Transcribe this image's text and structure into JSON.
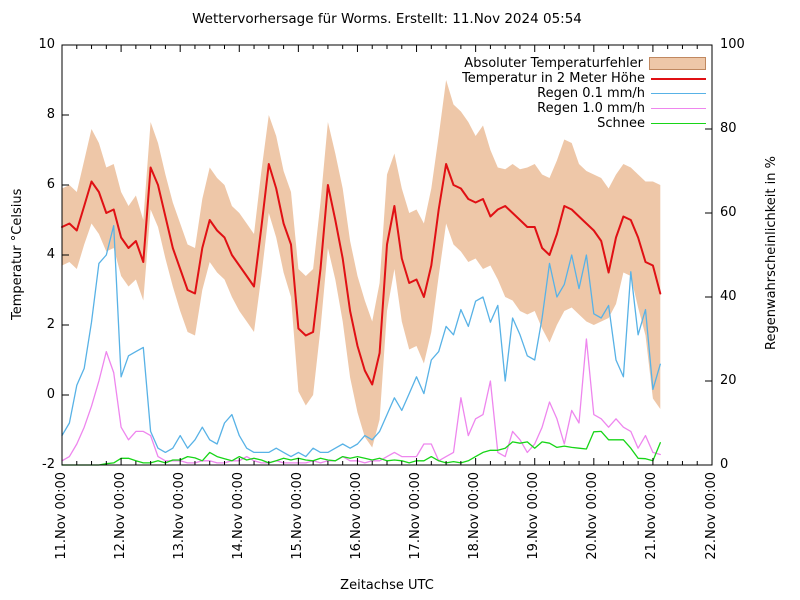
{
  "title": "Wettervorhersage für Worms. Erstellt: 11.Nov 2024 05:54",
  "axes": {
    "y_left": {
      "label": "Temperatur °Celsius",
      "min": -2,
      "max": 10,
      "ticks": [
        -2,
        0,
        2,
        4,
        6,
        8,
        10
      ]
    },
    "y_right": {
      "label": "Regenwahrscheinlichkeit in %",
      "min": 0,
      "max": 100,
      "ticks": [
        0,
        20,
        40,
        60,
        80,
        100
      ]
    },
    "x": {
      "label": "Zeitachse UTC",
      "tick_labels": [
        "11.Nov 00:00",
        "12.Nov 00:00",
        "13.Nov 00:00",
        "14.Nov 00:00",
        "15.Nov 00:00",
        "16.Nov 00:00",
        "17.Nov 00:00",
        "18.Nov 00:00",
        "19.Nov 00:00",
        "20.Nov 00:00",
        "21.Nov 00:00",
        "22.Nov 00:00"
      ],
      "minor_tick_hours": 6,
      "span_days": 11
    }
  },
  "legend": [
    {
      "label": "Absoluter Temperaturfehler",
      "type": "band",
      "color": "#eec7a8"
    },
    {
      "label": "Temperatur in 2 Meter Höhe",
      "type": "line",
      "color": "#e01014"
    },
    {
      "label": "Regen 0.1 mm/h",
      "type": "line",
      "color": "#58b2e6"
    },
    {
      "label": "Regen 1.0 mm/h",
      "type": "line",
      "color": "#ee86ee"
    },
    {
      "label": "Schnee",
      "type": "line",
      "color": "#17d517"
    }
  ],
  "chart_data": {
    "type": "line",
    "title": "Wettervorhersage für Worms. Erstellt: 11.Nov 2024 05:54",
    "xlabel": "Zeitachse UTC",
    "ylabel_left": "Temperatur °Celsius",
    "ylabel_right": "Regenwahrscheinlichkeit in %",
    "ylim_left": [
      -2,
      10
    ],
    "ylim_right": [
      0,
      100
    ],
    "x_start": "11.Nov 00:00",
    "x_end_axis": "22.Nov 00:00",
    "x_step_hours": 3,
    "grid": false,
    "legend_position": "top-right-inside",
    "series": [
      {
        "name": "Absoluter Temperaturfehler",
        "kind": "band",
        "axis": "left",
        "color": "#eec7a8",
        "upper": [
          5.9,
          6.0,
          5.8,
          6.7,
          7.6,
          7.2,
          6.5,
          6.6,
          5.8,
          5.4,
          5.7,
          5.0,
          7.8,
          7.2,
          6.3,
          5.5,
          4.9,
          4.3,
          4.2,
          5.6,
          6.5,
          6.2,
          6.0,
          5.4,
          5.2,
          4.9,
          4.6,
          6.4,
          8.0,
          7.4,
          6.4,
          5.8,
          3.6,
          3.4,
          3.6,
          5.5,
          7.8,
          6.9,
          5.9,
          4.4,
          3.4,
          2.7,
          2.1,
          3.2,
          6.3,
          6.9,
          5.9,
          5.2,
          5.3,
          4.9,
          5.9,
          7.4,
          9.0,
          8.3,
          8.1,
          7.8,
          7.4,
          7.7,
          7.0,
          6.5,
          6.45,
          6.6,
          6.45,
          6.5,
          6.6,
          6.3,
          6.2,
          6.7,
          7.3,
          7.2,
          6.6,
          6.4,
          6.3,
          6.2,
          5.9,
          6.3,
          6.6,
          6.5,
          6.3,
          6.1,
          6.1,
          6.0
        ],
        "lower": [
          3.7,
          3.8,
          3.6,
          4.3,
          4.9,
          4.6,
          4.1,
          4.2,
          3.4,
          3.1,
          3.3,
          2.7,
          5.3,
          4.8,
          3.9,
          3.1,
          2.4,
          1.8,
          1.7,
          3.0,
          3.8,
          3.5,
          3.3,
          2.8,
          2.4,
          2.1,
          1.8,
          3.4,
          5.2,
          4.5,
          3.5,
          2.8,
          0.1,
          -0.3,
          0.0,
          1.9,
          4.2,
          3.3,
          2.1,
          0.5,
          -0.5,
          -1.2,
          -1.5,
          -0.7,
          2.4,
          3.6,
          2.1,
          1.3,
          1.4,
          0.9,
          1.8,
          3.4,
          4.9,
          4.3,
          4.1,
          3.8,
          3.9,
          3.6,
          3.7,
          3.3,
          2.8,
          2.7,
          2.4,
          2.3,
          2.4,
          1.9,
          1.5,
          2.0,
          2.4,
          2.5,
          2.3,
          2.1,
          2.0,
          2.1,
          2.2,
          2.6,
          3.5,
          3.4,
          2.5,
          1.7,
          -0.1,
          -0.4
        ]
      },
      {
        "name": "Temperatur in 2 Meter Höhe",
        "kind": "line",
        "axis": "left",
        "color": "#e01014",
        "width": 2,
        "values": [
          4.8,
          4.9,
          4.7,
          5.4,
          6.1,
          5.8,
          5.2,
          5.3,
          4.5,
          4.2,
          4.4,
          3.8,
          6.5,
          6.0,
          5.1,
          4.2,
          3.6,
          3.0,
          2.9,
          4.2,
          5.0,
          4.7,
          4.5,
          4.0,
          3.7,
          3.4,
          3.1,
          4.8,
          6.6,
          5.9,
          4.9,
          4.3,
          1.9,
          1.7,
          1.8,
          3.6,
          6.0,
          5.0,
          3.9,
          2.4,
          1.4,
          0.7,
          0.3,
          1.2,
          4.3,
          5.4,
          3.9,
          3.2,
          3.3,
          2.8,
          3.7,
          5.3,
          6.6,
          6.0,
          5.9,
          5.6,
          5.5,
          5.6,
          5.1,
          5.3,
          5.4,
          5.2,
          5.0,
          4.8,
          4.8,
          4.2,
          4.0,
          4.6,
          5.4,
          5.3,
          5.1,
          4.9,
          4.7,
          4.4,
          3.5,
          4.5,
          5.1,
          5.0,
          4.5,
          3.8,
          3.7,
          2.9
        ]
      },
      {
        "name": "Regen 0.1 mm/h",
        "kind": "line",
        "axis": "right",
        "color": "#58b2e6",
        "width": 1.3,
        "values": [
          7,
          10,
          19,
          23,
          34,
          48,
          50,
          57,
          21,
          26,
          27,
          28,
          8,
          4,
          3,
          4,
          7,
          4,
          6,
          9,
          6,
          5,
          10,
          12,
          7,
          4,
          3,
          3,
          3,
          4,
          3,
          2,
          3,
          2,
          4,
          3,
          3,
          4,
          5,
          4,
          5,
          7,
          6,
          8,
          12,
          16,
          13,
          17,
          21,
          17,
          25,
          27,
          33,
          31,
          37,
          33,
          39,
          40,
          34,
          38,
          20,
          35,
          31,
          26,
          25,
          35,
          48,
          40,
          43,
          50,
          42,
          50,
          36,
          35,
          38,
          25,
          21,
          46,
          31,
          37,
          18,
          24
        ]
      },
      {
        "name": "Regen 1.0 mm/h",
        "kind": "line",
        "axis": "right",
        "color": "#ee86ee",
        "width": 1.3,
        "values": [
          1,
          2,
          5,
          9,
          14,
          20,
          27,
          22,
          9,
          6,
          8,
          8,
          7,
          2,
          1,
          1,
          1,
          0.5,
          0.5,
          1,
          1,
          0.5,
          0.5,
          1,
          1,
          2,
          1,
          0.5,
          0.5,
          1,
          0.5,
          0.5,
          0.5,
          0.5,
          1,
          0.5,
          1,
          1,
          2,
          1,
          1,
          0.5,
          1,
          1,
          2,
          3,
          2,
          2,
          2,
          5,
          5,
          1,
          2,
          3,
          16,
          7,
          11,
          12,
          20,
          3,
          2,
          8,
          6,
          3,
          5,
          9,
          15,
          11,
          5,
          13,
          10,
          30,
          12,
          11,
          9,
          11,
          9,
          8,
          4,
          7,
          3,
          2.5
        ]
      },
      {
        "name": "Schnee",
        "kind": "line",
        "axis": "right",
        "color": "#17d517",
        "width": 1.3,
        "values": [
          0,
          0,
          0,
          0,
          0,
          0,
          0.3,
          0.5,
          1.6,
          1.6,
          1,
          0.5,
          0.5,
          1,
          0.5,
          1.2,
          1.2,
          2,
          1.7,
          1,
          3,
          2,
          1.5,
          1,
          2,
          1.2,
          1.6,
          1.2,
          0.5,
          1,
          1.6,
          1.2,
          1.6,
          1.2,
          1,
          1.6,
          1.2,
          1,
          2,
          1.6,
          2,
          1.6,
          1.2,
          1.6,
          1,
          1.2,
          1,
          0.5,
          1,
          1,
          2,
          1,
          0.5,
          0.8,
          0.5,
          1,
          2,
          3,
          3.5,
          3.5,
          4,
          5.5,
          5.2,
          5.5,
          4,
          5.5,
          5.2,
          4.2,
          4.5,
          4.2,
          4,
          3.8,
          7.9,
          8,
          6,
          6,
          6,
          4,
          1.6,
          1.5,
          1,
          5.3
        ]
      }
    ]
  }
}
